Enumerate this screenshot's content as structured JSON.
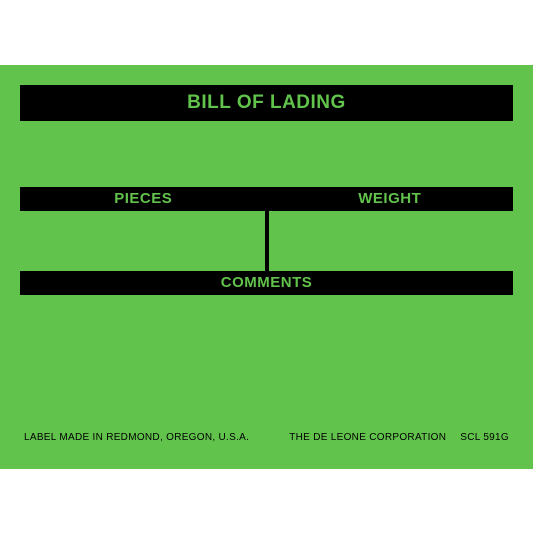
{
  "colors": {
    "green": "#61c34b",
    "black": "#000000"
  },
  "label": {
    "title": "BILL OF LADING",
    "pieces_label": "PIECES",
    "weight_label": "WEIGHT",
    "comments_label": "COMMENTS",
    "footer_left": "LABEL MADE IN REDMOND, OREGON, U.S.A.",
    "footer_company": "THE DE LEONE CORPORATION",
    "footer_code": "SCL 591G"
  }
}
